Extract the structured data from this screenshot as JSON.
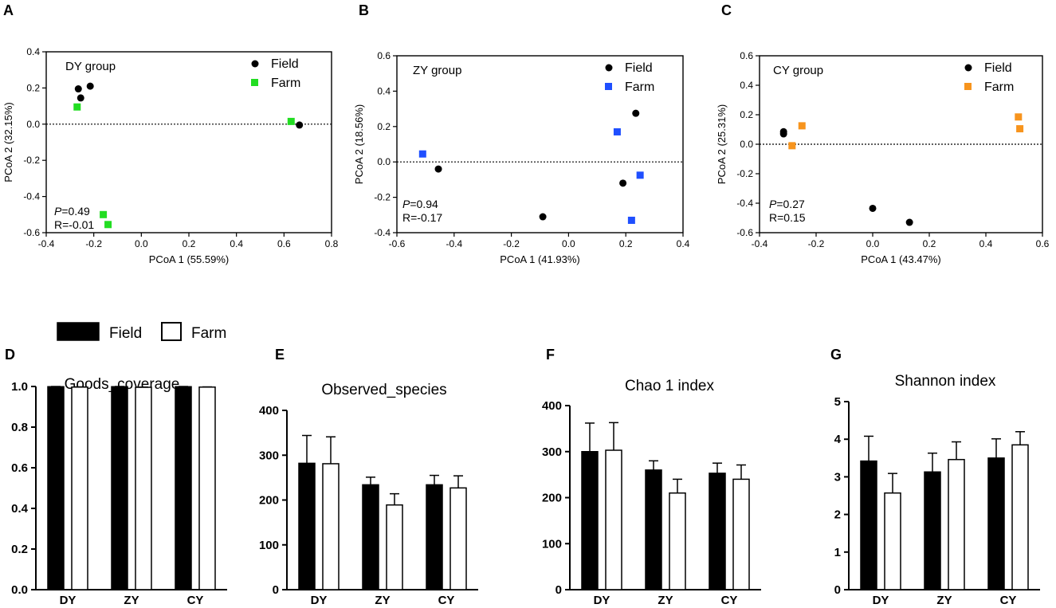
{
  "chart_data": [
    {
      "panel": "A",
      "type": "scatter",
      "group_label": "DY group",
      "xlabel": "PCoA 1 (55.59%)",
      "ylabel": "PCoA 2 (32.15%)",
      "xlim": [
        -0.4,
        0.8
      ],
      "ylim": [
        -0.6,
        0.4
      ],
      "xticks": [
        "-0.4",
        "-0.2",
        "0.0",
        "0.2",
        "0.4",
        "0.6",
        "0.8"
      ],
      "yticks": [
        "-0.6",
        "-0.4",
        "-0.2",
        "0.0",
        "0.2",
        "0.4"
      ],
      "p_label": "P",
      "p_value": "=0.49",
      "r_text": "R=-0.01",
      "series": [
        {
          "name": "Field",
          "marker": "circle",
          "color": "#000000",
          "points": [
            [
              -0.265,
              0.195
            ],
            [
              -0.215,
              0.21
            ],
            [
              -0.255,
              0.145
            ],
            [
              0.665,
              -0.005
            ]
          ]
        },
        {
          "name": "Farm",
          "marker": "square",
          "color": "#22dd22",
          "points": [
            [
              -0.27,
              0.095
            ],
            [
              0.63,
              0.015
            ],
            [
              -0.16,
              -0.5
            ],
            [
              -0.14,
              -0.555
            ]
          ]
        }
      ]
    },
    {
      "panel": "B",
      "type": "scatter",
      "group_label": "ZY group",
      "xlabel": "PCoA 1 (41.93%)",
      "ylabel": "PCoA 2 (18.56%)",
      "xlim": [
        -0.6,
        0.4
      ],
      "ylim": [
        -0.4,
        0.6
      ],
      "xticks": [
        "-0.6",
        "-0.4",
        "-0.2",
        "0.0",
        "0.2",
        "0.4"
      ],
      "yticks": [
        "-0.4",
        "-0.2",
        "0.0",
        "0.2",
        "0.4",
        "0.6"
      ],
      "p_label": "P",
      "p_value": "=0.94",
      "r_text": "R=-0.17",
      "series": [
        {
          "name": "Field",
          "marker": "circle",
          "color": "#000000",
          "points": [
            [
              -0.455,
              -0.04
            ],
            [
              -0.09,
              -0.31
            ],
            [
              0.19,
              -0.12
            ],
            [
              0.235,
              0.275
            ]
          ]
        },
        {
          "name": "Farm",
          "marker": "square",
          "color": "#1f4fff",
          "points": [
            [
              -0.51,
              0.045
            ],
            [
              0.17,
              0.17
            ],
            [
              0.25,
              -0.075
            ],
            [
              0.22,
              -0.33
            ]
          ]
        }
      ]
    },
    {
      "panel": "C",
      "type": "scatter",
      "group_label": "CY group",
      "xlabel": "PCoA 1 (43.47%)",
      "ylabel": "PCoA 2 (25.31%)",
      "xlim": [
        -0.4,
        0.6
      ],
      "ylim": [
        -0.6,
        0.6
      ],
      "xticks": [
        "-0.4",
        "-0.2",
        "0.0",
        "0.2",
        "0.4",
        "0.6"
      ],
      "yticks": [
        "-0.6",
        "-0.4",
        "-0.2",
        "0.0",
        "0.2",
        "0.4",
        "0.6"
      ],
      "p_label": "P",
      "p_value": "=0.27",
      "r_text": "R=0.15",
      "series": [
        {
          "name": "Field",
          "marker": "circle",
          "color": "#000000",
          "points": [
            [
              -0.315,
              0.085
            ],
            [
              -0.315,
              0.07
            ],
            [
              0.0,
              -0.435
            ],
            [
              0.13,
              -0.53
            ]
          ]
        },
        {
          "name": "Farm",
          "marker": "square",
          "color": "#f7941d",
          "points": [
            [
              -0.25,
              0.125
            ],
            [
              -0.285,
              -0.01
            ],
            [
              0.515,
              0.185
            ],
            [
              0.52,
              0.105
            ]
          ]
        }
      ]
    },
    {
      "panel": "D",
      "type": "bar",
      "title": "Goods_coverage",
      "categories": [
        "DY",
        "ZY",
        "CY"
      ],
      "ylim": [
        0,
        1.0
      ],
      "yticks": [
        "0.0",
        "0.2",
        "0.4",
        "0.6",
        "0.8",
        "1.0"
      ],
      "series": [
        {
          "name": "Field",
          "values": [
            0.999,
            0.999,
            0.999
          ],
          "errors": [
            0.001,
            0.001,
            0.001
          ]
        },
        {
          "name": "Farm",
          "values": [
            0.997,
            0.996,
            0.997
          ],
          "errors": [
            0.001,
            0.001,
            0.001
          ]
        }
      ]
    },
    {
      "panel": "E",
      "type": "bar",
      "title": "Observed_species",
      "categories": [
        "DY",
        "ZY",
        "CY"
      ],
      "ylim": [
        0,
        400
      ],
      "yticks": [
        "0",
        "100",
        "200",
        "300",
        "400"
      ],
      "series": [
        {
          "name": "Field",
          "values": [
            282,
            234,
            234
          ],
          "errors": [
            62,
            17,
            21
          ]
        },
        {
          "name": "Farm",
          "values": [
            281,
            189,
            227
          ],
          "errors": [
            60,
            25,
            27
          ]
        }
      ]
    },
    {
      "panel": "F",
      "type": "bar",
      "title": "Chao 1  index",
      "categories": [
        "DY",
        "ZY",
        "CY"
      ],
      "ylim": [
        0,
        400
      ],
      "yticks": [
        "0",
        "100",
        "200",
        "300",
        "400"
      ],
      "series": [
        {
          "name": "Field",
          "values": [
            300,
            260,
            253
          ],
          "errors": [
            62,
            20,
            22
          ]
        },
        {
          "name": "Farm",
          "values": [
            303,
            210,
            240
          ],
          "errors": [
            60,
            30,
            31
          ]
        }
      ]
    },
    {
      "panel": "G",
      "type": "bar",
      "title": "Shannon  index",
      "categories": [
        "DY",
        "ZY",
        "CY"
      ],
      "ylim": [
        0,
        5
      ],
      "yticks": [
        "0",
        "1",
        "2",
        "3",
        "4",
        "5"
      ],
      "series": [
        {
          "name": "Field",
          "values": [
            3.42,
            3.13,
            3.5
          ],
          "errors": [
            0.66,
            0.5,
            0.51
          ]
        },
        {
          "name": "Farm",
          "values": [
            2.57,
            3.46,
            3.85
          ],
          "errors": [
            0.52,
            0.47,
            0.35
          ]
        }
      ]
    }
  ],
  "bar_legend": {
    "field_label": "Field",
    "farm_label": "Farm"
  },
  "colors": {
    "field": "#000000",
    "farm_fill": "#ffffff",
    "dy_farm": "#22dd22",
    "zy_farm": "#1f4fff",
    "cy_farm": "#f7941d"
  }
}
